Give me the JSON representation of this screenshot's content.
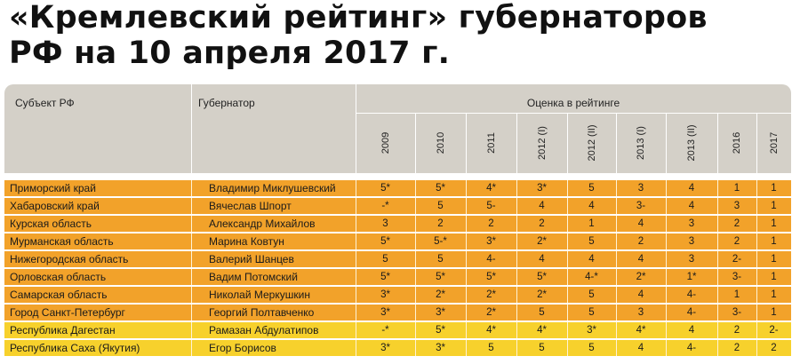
{
  "title": {
    "line1": "«Кремлевский рейтинг» губернаторов",
    "line2": "РФ на 10 апреля 2017 г."
  },
  "colors": {
    "orange": "#f2a22a",
    "yellow": "#f7d12c",
    "header": "#d4d0c8"
  },
  "table": {
    "header": {
      "subject": "Субъект РФ",
      "governor": "Губернатор",
      "rating": "Оценка в рейтинге",
      "years": [
        "2009",
        "2010",
        "2011",
        "2012 (I)",
        "2012 (II)",
        "2013 (I)",
        "2013 (II)",
        "2016",
        "2017"
      ]
    },
    "rows": [
      {
        "subject": "Приморский край",
        "governor": "Владимир Миклушевский",
        "values": [
          "5*",
          "5*",
          "4*",
          "3*",
          "5",
          "3",
          "4",
          "1",
          "1"
        ],
        "color": "orange"
      },
      {
        "subject": "Хабаровский край",
        "governor": "Вячеслав Шпорт",
        "values": [
          "-*",
          "5",
          "5-",
          "4",
          "4",
          "3-",
          "4",
          "3",
          "1"
        ],
        "color": "orange"
      },
      {
        "subject": "Курская область",
        "governor": "Александр Михайлов",
        "values": [
          "3",
          "2",
          "2",
          "2",
          "1",
          "4",
          "3",
          "2",
          "1"
        ],
        "color": "orange"
      },
      {
        "subject": "Мурманская область",
        "governor": "Марина Ковтун",
        "values": [
          "5*",
          "5-*",
          "3*",
          "2*",
          "5",
          "2",
          "3",
          "2",
          "1"
        ],
        "color": "orange"
      },
      {
        "subject": "Нижегородская область",
        "governor": "Валерий Шанцев",
        "values": [
          "5",
          "5",
          "4-",
          "4",
          "4",
          "4",
          "3",
          "2-",
          "1"
        ],
        "color": "orange"
      },
      {
        "subject": "Орловская область",
        "governor": "Вадим Потомский",
        "values": [
          "5*",
          "5*",
          "5*",
          "5*",
          "4-*",
          "2*",
          "1*",
          "3-",
          "1"
        ],
        "color": "orange"
      },
      {
        "subject": "Самарская область",
        "governor": "Николай Меркушкин",
        "values": [
          "3*",
          "2*",
          "2*",
          "2*",
          "5",
          "4",
          "4-",
          "1",
          "1"
        ],
        "color": "orange"
      },
      {
        "subject": "Город Санкт-Петербург",
        "governor": "Георгий Полтавченко",
        "values": [
          "3*",
          "3*",
          "2*",
          "5",
          "5",
          "3",
          "4-",
          "3-",
          "1"
        ],
        "color": "orange"
      },
      {
        "subject": "Республика Дагестан",
        "governor": "Рамазан Абдулатипов",
        "values": [
          "-*",
          "5*",
          "4*",
          "4*",
          "3*",
          "4*",
          "4",
          "2",
          "2-"
        ],
        "color": "yellow"
      },
      {
        "subject": "Республика Саха (Якутия)",
        "governor": "Егор Борисов",
        "values": [
          "3*",
          "3*",
          "5",
          "5",
          "5",
          "4",
          "4-",
          "2",
          "2"
        ],
        "color": "yellow"
      }
    ]
  }
}
